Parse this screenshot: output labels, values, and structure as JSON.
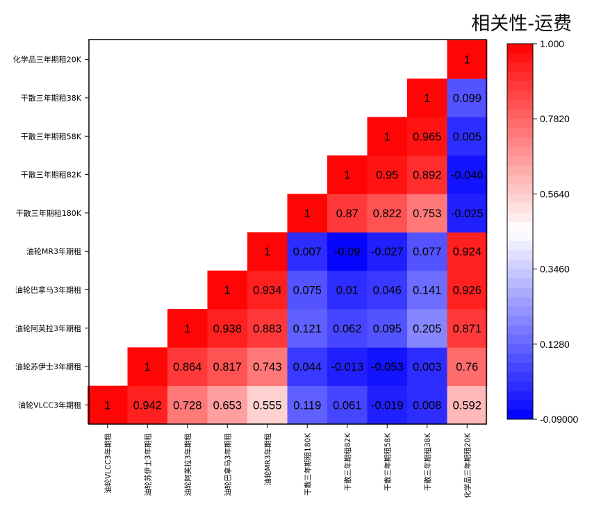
{
  "chart_data": {
    "type": "heatmap",
    "title": "相关性-运费",
    "labels": [
      "油轮VLCC3年期租",
      "油轮苏伊士3年期租",
      "油轮阿芙拉3年期租",
      "油轮巴拿马3年期租",
      "油轮MR3年期租",
      "干散三年期租180K",
      "干散三年期租82K",
      "干散三年期租58K",
      "干散三年期租38K",
      "化学品三年期租20K"
    ],
    "matrix": [
      [
        1,
        0.942,
        0.728,
        0.653,
        0.555,
        0.119,
        0.061,
        -0.019,
        0.008,
        0.592
      ],
      [
        null,
        1,
        0.864,
        0.817,
        0.743,
        0.044,
        -0.013,
        -0.053,
        0.003,
        0.76
      ],
      [
        null,
        null,
        1,
        0.938,
        0.883,
        0.121,
        0.062,
        0.095,
        0.205,
        0.871
      ],
      [
        null,
        null,
        null,
        1,
        0.934,
        0.075,
        0.01,
        0.046,
        0.141,
        0.926
      ],
      [
        null,
        null,
        null,
        null,
        1,
        0.007,
        -0.09,
        -0.027,
        0.077,
        0.924
      ],
      [
        null,
        null,
        null,
        null,
        null,
        1,
        0.87,
        0.822,
        0.753,
        -0.025
      ],
      [
        null,
        null,
        null,
        null,
        null,
        null,
        1,
        0.95,
        0.892,
        -0.046
      ],
      [
        null,
        null,
        null,
        null,
        null,
        null,
        null,
        1,
        0.965,
        0.005
      ],
      [
        null,
        null,
        null,
        null,
        null,
        null,
        null,
        null,
        1,
        0.099
      ],
      [
        null,
        null,
        null,
        null,
        null,
        null,
        null,
        null,
        null,
        1
      ]
    ],
    "matrix_labels": [
      [
        "1",
        "0.942",
        "0.728",
        "0.653",
        "0.555",
        "0.119",
        "0.061",
        "-0.019",
        "0.008",
        "0.592"
      ],
      [
        null,
        "1",
        "0.864",
        "0.817",
        "0.743",
        "0.044",
        "-0.013",
        "-0.053",
        "0.003",
        "0.76"
      ],
      [
        null,
        null,
        "1",
        "0.938",
        "0.883",
        "0.121",
        "0.062",
        "0.095",
        "0.205",
        "0.871"
      ],
      [
        null,
        null,
        null,
        "1",
        "0.934",
        "0.075",
        "0.01",
        "0.046",
        "0.141",
        "0.926"
      ],
      [
        null,
        null,
        null,
        null,
        "1",
        "0.007",
        "-0.09",
        "-0.027",
        "0.077",
        "0.924"
      ],
      [
        null,
        null,
        null,
        null,
        null,
        "1",
        "0.87",
        "0.822",
        "0.753",
        "-0.025"
      ],
      [
        null,
        null,
        null,
        null,
        null,
        null,
        "1",
        "0.95",
        "0.892",
        "-0.046"
      ],
      [
        null,
        null,
        null,
        null,
        null,
        null,
        null,
        "1",
        "0.965",
        "0.005"
      ],
      [
        null,
        null,
        null,
        null,
        null,
        null,
        null,
        null,
        "1",
        "0.099"
      ],
      [
        null,
        null,
        null,
        null,
        null,
        null,
        null,
        null,
        null,
        "1"
      ]
    ],
    "colorbar": {
      "min": -0.09,
      "max": 1.0,
      "ticks": [
        1.0,
        0.782,
        0.564,
        0.346,
        0.128,
        -0.09
      ],
      "tick_labels": [
        "1.000",
        "0.7820",
        "0.5640",
        "0.3460",
        "0.1280",
        "-0.09000"
      ],
      "colors": {
        "low": "#0000ff",
        "mid": "#ffffff",
        "high": "#ff0000"
      },
      "levels": 40
    }
  }
}
